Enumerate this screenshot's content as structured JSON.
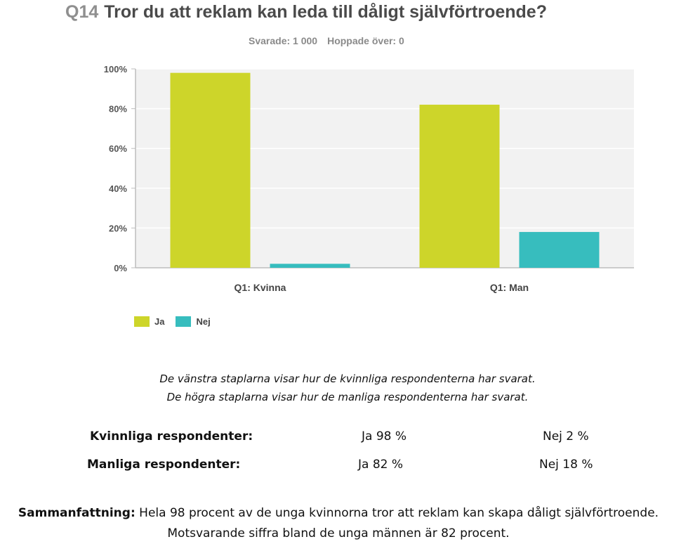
{
  "question": {
    "number": "Q14",
    "text": "Tror du att reklam kan leda till dåligt självförtroende?"
  },
  "stats": {
    "answered": "Svarade: 1 000",
    "skipped": "Hoppade över: 0"
  },
  "colors": {
    "ja": "#cdd52a",
    "nej": "#37bdbe",
    "plot_background": "#f2f2f2",
    "gridline": "#ffffff",
    "axis": "#bdbdbd"
  },
  "chart_data": {
    "type": "bar",
    "categories": [
      "Q1: Kvinna",
      "Q1: Man"
    ],
    "series": [
      {
        "name": "Ja",
        "values": [
          98,
          82
        ]
      },
      {
        "name": "Nej",
        "values": [
          2,
          18
        ]
      }
    ],
    "ylim": [
      0,
      100
    ],
    "yticks": [
      "0%",
      "20%",
      "40%",
      "60%",
      "80%",
      "100%"
    ],
    "ytick_values": [
      0,
      20,
      40,
      60,
      80,
      100
    ],
    "grid": true,
    "legend_position": "bottom-left"
  },
  "captions": {
    "line1": "De vänstra staplarna visar hur de kvinnliga respondenterna har svarat.",
    "line2": "De högra staplarna visar hur de manliga respondenterna har svarat."
  },
  "respondents": {
    "female": {
      "label": "Kvinnliga respondenter:",
      "yes": "Ja 98 %",
      "no": "Nej 2 %"
    },
    "male": {
      "label": "Manliga respondenter:",
      "yes": "Ja 82 %",
      "no": "Nej 18 %"
    }
  },
  "summary": {
    "label": "Sammanfattning:",
    "line1": "Hela 98 procent av de unga kvinnorna tror att reklam kan skapa dåligt självförtroende.",
    "line2": "Motsvarande siffra bland de unga männen är 82 procent."
  }
}
